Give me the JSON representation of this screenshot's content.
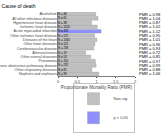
{
  "chart_data": {
    "type": "bar",
    "orientation": "horizontal",
    "title": "Cause of death",
    "x_label": "Proportionate Mortality Ratio (PMR)",
    "categories": [
      "Alcoholism",
      "All other infectious diseases",
      "Hypertensive heart disease",
      "Ischemic heart disease",
      "Acute myocardial infarction",
      "Other ischemic heart disease",
      "Diseases of the heart",
      "Other heart diseases",
      "Cerebrovascular disease",
      "Atherosclerosis",
      "Other arterial diseases",
      "Pneumonia",
      "Chronic obstructive pulmonary disease",
      "Other respiratory diseases",
      "Nephritis and nephrosis"
    ],
    "series": [
      {
        "name": "Non-sig",
        "color": "#c0c0c0",
        "values": [
          0.98,
          1.04,
          0.87,
          1.02,
          null,
          0.95,
          1.01,
          0.96,
          0.93,
          0.72,
          0.85,
          0.97,
          0.99,
          0.88,
          1.06
        ]
      },
      {
        "name": "p < 0.05",
        "color": "#8f8fff",
        "values": [
          null,
          null,
          null,
          null,
          1.12,
          null,
          null,
          null,
          null,
          null,
          null,
          null,
          null,
          null,
          null
        ]
      }
    ],
    "count_labels": [
      "N = 46",
      "N = 61",
      "N = 38",
      "N = 1025",
      "N = 453",
      "N = 572",
      "N = 1362",
      "N = 221",
      "N = 258",
      "N = 19",
      "N = 53",
      "N = 150",
      "N = 292",
      "N = 81",
      "N = 96"
    ],
    "value_labels": [
      "PMR = 0.98",
      "PMR = 1.04",
      "PMR = 0.87",
      "PMR = 1.02",
      "PMR = 1.12",
      "PMR = 0.95",
      "PMR = 1.01",
      "PMR = 0.96",
      "PMR = 0.93",
      "PMR = 0.72",
      "PMR = 0.85",
      "PMR = 0.97",
      "PMR = 0.99",
      "PMR = 0.88",
      "PMR = 1.06"
    ],
    "xlim": [
      0,
      2
    ],
    "xticks": [
      0,
      0.5,
      1,
      1.5,
      2
    ],
    "legend": "bottom right",
    "grid": false
  }
}
